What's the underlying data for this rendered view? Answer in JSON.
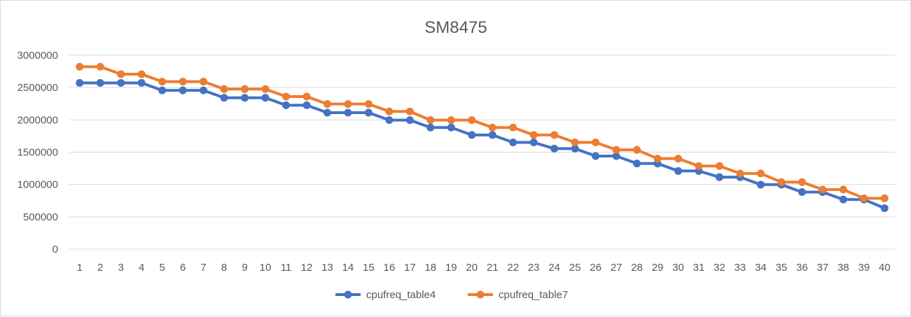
{
  "chart_data": {
    "type": "line",
    "title": "SM8475",
    "xlabel": "",
    "ylabel": "",
    "x": [
      1,
      2,
      3,
      4,
      5,
      6,
      7,
      8,
      9,
      10,
      11,
      12,
      13,
      14,
      15,
      16,
      17,
      18,
      19,
      20,
      21,
      22,
      23,
      24,
      25,
      26,
      27,
      28,
      29,
      30,
      31,
      32,
      33,
      34,
      35,
      36,
      37,
      38,
      39,
      40
    ],
    "ylim": [
      0,
      3000000
    ],
    "yticks": [
      0,
      500000,
      1000000,
      1500000,
      2000000,
      2500000,
      3000000
    ],
    "ytick_labels": [
      "0",
      "500000",
      "1000000",
      "1500000",
      "2000000",
      "2500000",
      "3000000"
    ],
    "grid": true,
    "legend_position": "bottom",
    "series": [
      {
        "name": "cpufreq_table4",
        "color": "#4472C4",
        "values": [
          2572800,
          2572800,
          2572800,
          2572800,
          2457600,
          2457600,
          2457600,
          2342400,
          2342400,
          2342400,
          2227200,
          2227200,
          2112000,
          2112000,
          2112000,
          1996800,
          1996800,
          1881600,
          1881600,
          1766400,
          1766400,
          1651200,
          1651200,
          1555200,
          1555200,
          1440000,
          1440000,
          1324800,
          1324800,
          1209600,
          1209600,
          1113600,
          1113600,
          998400,
          998400,
          883200,
          883200,
          768000,
          768000,
          633600
        ]
      },
      {
        "name": "cpufreq_table7",
        "color": "#ED7D31",
        "values": [
          2822400,
          2822400,
          2707200,
          2707200,
          2592000,
          2592000,
          2592000,
          2476800,
          2476800,
          2476800,
          2361600,
          2361600,
          2246400,
          2246400,
          2246400,
          2131200,
          2131200,
          1996800,
          1996800,
          1996800,
          1881600,
          1881600,
          1766400,
          1766400,
          1651200,
          1651200,
          1536000,
          1536000,
          1401600,
          1401600,
          1286400,
          1286400,
          1171200,
          1171200,
          1036800,
          1036800,
          921600,
          921600,
          787200,
          787200
        ]
      }
    ]
  }
}
